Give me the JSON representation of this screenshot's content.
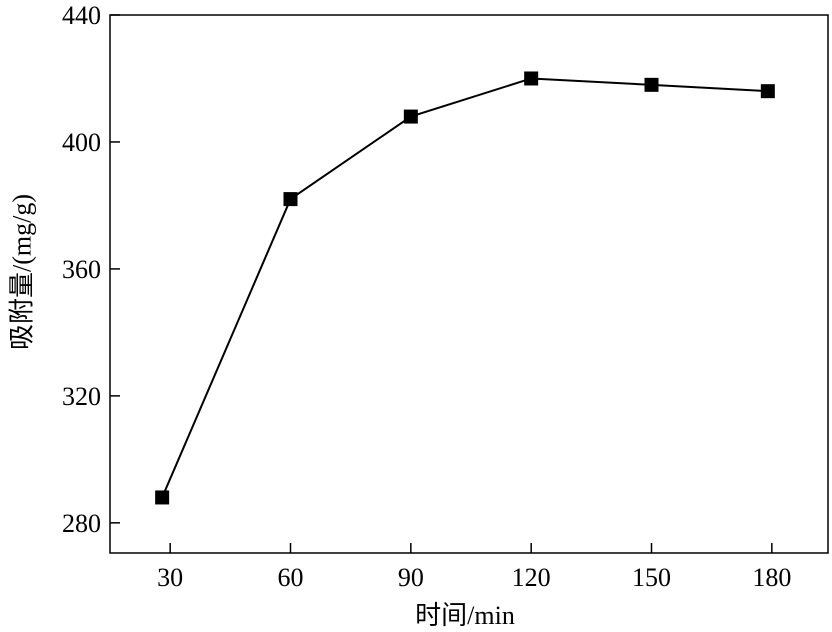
{
  "chart_data": {
    "type": "line",
    "xlabel": "时间/min",
    "ylabel": "吸附量/(mg/g)",
    "x": [
      28,
      60,
      90,
      120,
      150,
      179
    ],
    "series": [
      {
        "values": [
          288,
          382,
          408,
          420,
          418,
          416
        ],
        "marker": "square",
        "color": "#000000"
      }
    ],
    "xlim": [
      15,
      194
    ],
    "ylim": [
      270.5,
      440
    ],
    "xticks": [
      30,
      60,
      90,
      120,
      150,
      180
    ],
    "yticks": [
      280,
      320,
      360,
      400,
      440
    ],
    "grid": false
  }
}
